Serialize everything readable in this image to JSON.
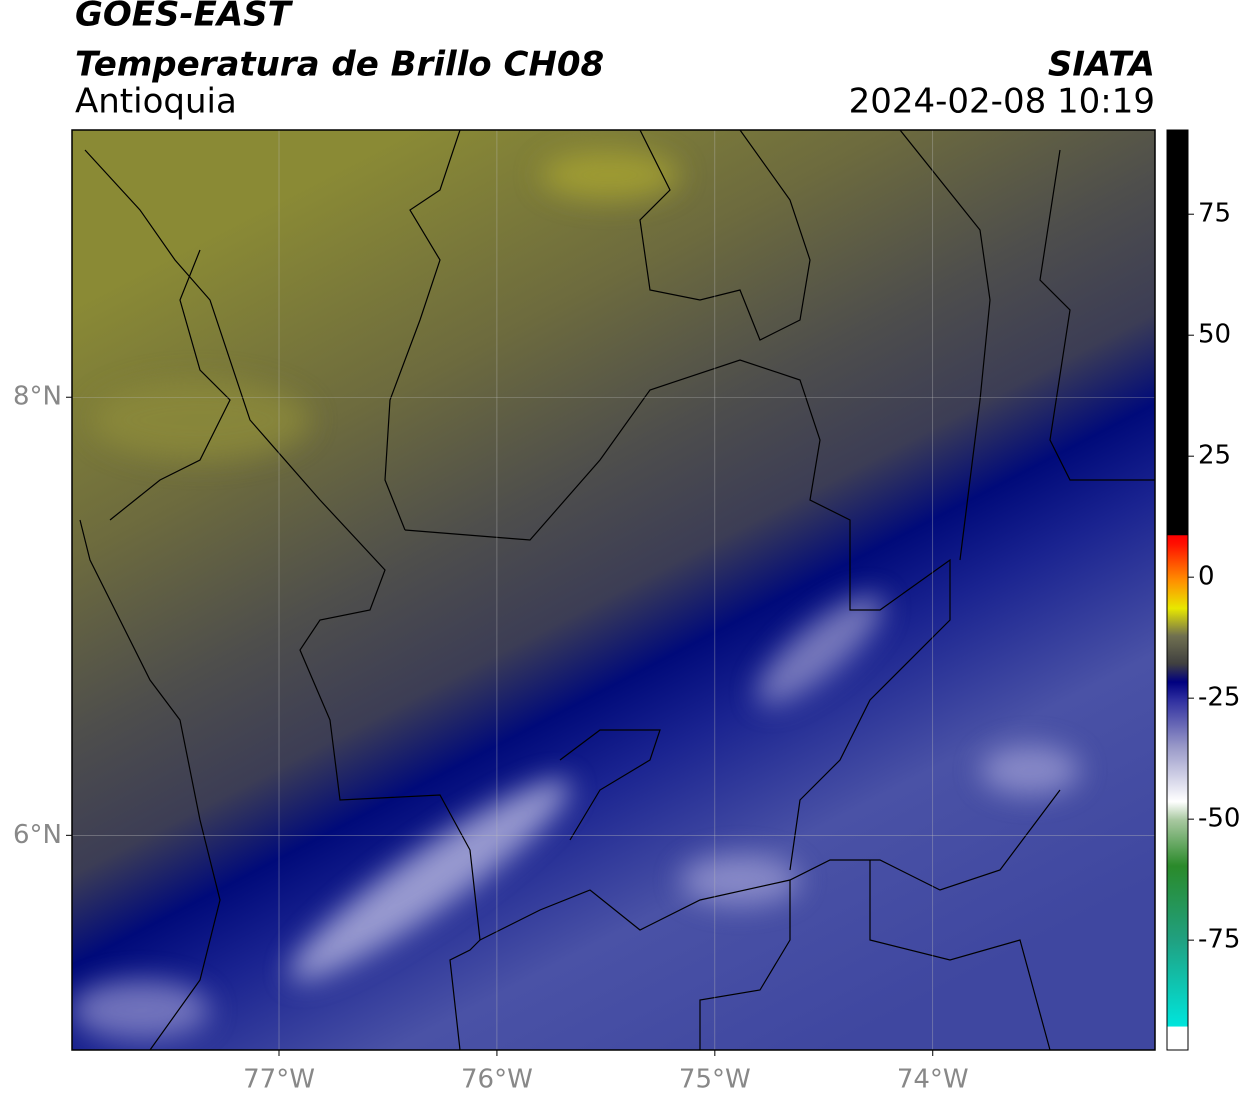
{
  "header": {
    "title": "GOES-EAST",
    "subtitle": "Temperatura de Brillo CH08",
    "region": "Antioquia",
    "source": "SIATA",
    "datetime": "2024-02-08 10:19"
  },
  "map": {
    "lonlim": [
      -77.95,
      -72.98
    ],
    "latlim": [
      5.02,
      9.22
    ],
    "lon_ticks": [
      {
        "value": -77,
        "label": "77°W"
      },
      {
        "value": -76,
        "label": "76°W"
      },
      {
        "value": -75,
        "label": "75°W"
      },
      {
        "value": -74,
        "label": "74°W"
      }
    ],
    "lat_ticks": [
      {
        "value": 8,
        "label": "8°N"
      },
      {
        "value": 6,
        "label": "6°N"
      }
    ]
  },
  "colorbar": {
    "lim": [
      -97.7,
      92.4
    ],
    "ticks": [
      75,
      50,
      25,
      0,
      -25,
      -50,
      -75
    ]
  }
}
